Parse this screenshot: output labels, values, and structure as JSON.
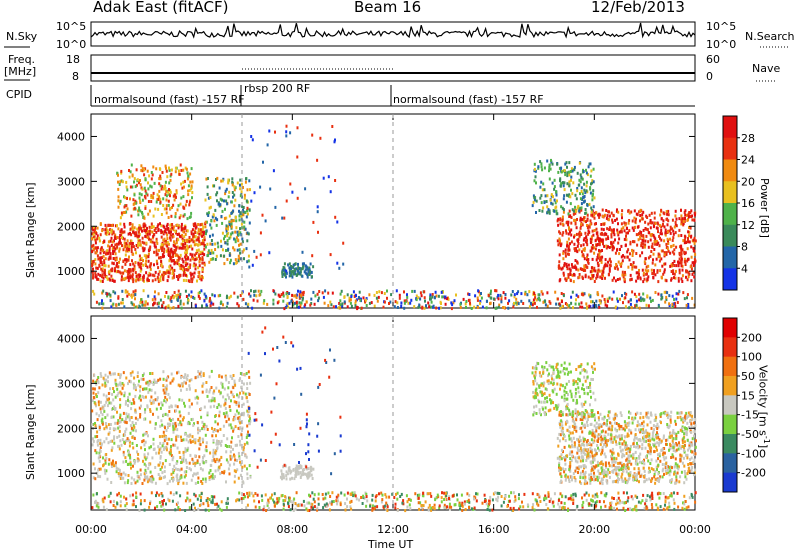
{
  "header": {
    "station": "Adak East (fitACF)",
    "beam": "Beam 16",
    "date": "12/Feb/2013"
  },
  "top_panels": {
    "nsky_label": "N.Sky",
    "nsky_ticks": [
      "10^5",
      "10^0"
    ],
    "nsearch_label": "N.Search",
    "nsearch_ticks": [
      "10^5",
      "10^0"
    ],
    "freq_label": "Freq.",
    "freq_unit": "[MHz]",
    "freq_ticks": [
      "18",
      "8"
    ],
    "nave_label": "Nave",
    "nave_ticks": [
      "60",
      "0"
    ],
    "cpid_label": "CPID",
    "cpid_segments": [
      {
        "label": "normalsound (fast) -157 RF",
        "start_hour": 0,
        "end_hour": 6
      },
      {
        "label": "rbsp 200 RF",
        "start_hour": 6,
        "end_hour": 12
      },
      {
        "label": "normalsound (fast) -157 RF",
        "start_hour": 12,
        "end_hour": 24
      }
    ]
  },
  "chart_data": [
    {
      "type": "heatmap",
      "panel": "power",
      "ylabel": "Slant Range [km]",
      "yticks": [
        "1000",
        "2000",
        "3000",
        "4000"
      ],
      "ylim": [
        180,
        4500
      ],
      "xlabel": "Time UT",
      "xticks": [
        "00:00",
        "04:00",
        "08:00",
        "12:00",
        "16:00",
        "20:00",
        "00:00"
      ],
      "xlim_hours": [
        0,
        24
      ],
      "colorbar_label": "Power [dB]",
      "colorbar_ticks": [
        "4",
        "8",
        "12",
        "16",
        "20",
        "24",
        "28"
      ],
      "colorbar_colors": [
        "#1433e6",
        "#2366a8",
        "#3a8a5a",
        "#4fb24a",
        "#e8c020",
        "#f08a10",
        "#e83010",
        "#e01010"
      ]
    },
    {
      "type": "heatmap",
      "panel": "velocity",
      "ylabel": "Slant Range [km]",
      "yticks": [
        "1000",
        "2000",
        "3000",
        "4000"
      ],
      "ylim": [
        180,
        4500
      ],
      "xlabel": "Time UT",
      "xticks": [
        "00:00",
        "04:00",
        "08:00",
        "12:00",
        "16:00",
        "20:00",
        "00:00"
      ],
      "xlim_hours": [
        0,
        24
      ],
      "colorbar_label": "Velocity [m s^-1]",
      "colorbar_ticks": [
        "200",
        "100",
        "50",
        "15",
        "-15",
        "-50",
        "-100",
        "-200"
      ],
      "colorbar_colors": [
        "#1a3ad0",
        "#2a62a0",
        "#3a8a60",
        "#7ad040",
        "#c8c8c0",
        "#f0a020",
        "#f07010",
        "#e83010",
        "#e00000"
      ]
    }
  ],
  "xaxis_title": "Time UT"
}
